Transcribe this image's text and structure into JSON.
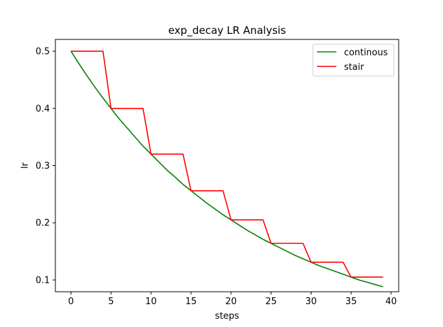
{
  "chart_data": {
    "type": "line",
    "title": "exp_decay LR Analysis",
    "xlabel": "steps",
    "ylabel": "lr",
    "xlim": [
      -1.95,
      40.95
    ],
    "ylim": [
      0.0794,
      0.5206
    ],
    "xticks": [
      0,
      5,
      10,
      15,
      20,
      25,
      30,
      35,
      40
    ],
    "xtick_labels": [
      "0",
      "5",
      "10",
      "15",
      "20",
      "25",
      "30",
      "35",
      "40"
    ],
    "yticks": [
      0.1,
      0.2,
      0.3,
      0.4,
      0.5
    ],
    "ytick_labels": [
      "0.1",
      "0.2",
      "0.3",
      "0.4",
      "0.5"
    ],
    "grid": false,
    "legend_position": "top-right",
    "series": [
      {
        "name": "continous",
        "color": "#008000",
        "x": [
          0,
          1,
          2,
          3,
          4,
          5,
          6,
          7,
          8,
          9,
          10,
          11,
          12,
          13,
          14,
          15,
          16,
          17,
          18,
          19,
          20,
          21,
          22,
          23,
          24,
          25,
          26,
          27,
          28,
          29,
          30,
          31,
          32,
          33,
          34,
          35,
          36,
          37,
          38,
          39
        ],
        "y": [
          0.5,
          0.478,
          0.457,
          0.437,
          0.418,
          0.4,
          0.382,
          0.366,
          0.35,
          0.334,
          0.32,
          0.306,
          0.292,
          0.28,
          0.267,
          0.256,
          0.245,
          0.234,
          0.224,
          0.214,
          0.205,
          0.196,
          0.187,
          0.179,
          0.171,
          0.164,
          0.157,
          0.15,
          0.143,
          0.137,
          0.131,
          0.125,
          0.12,
          0.115,
          0.11,
          0.105,
          0.1,
          0.096,
          0.092,
          0.088
        ]
      },
      {
        "name": "stair",
        "color": "#ff0000",
        "x": [
          0,
          1,
          2,
          3,
          4,
          5,
          6,
          7,
          8,
          9,
          10,
          11,
          12,
          13,
          14,
          15,
          16,
          17,
          18,
          19,
          20,
          21,
          22,
          23,
          24,
          25,
          26,
          27,
          28,
          29,
          30,
          31,
          32,
          33,
          34,
          35,
          36,
          37,
          38,
          39
        ],
        "y": [
          0.5,
          0.5,
          0.5,
          0.5,
          0.5,
          0.4,
          0.4,
          0.4,
          0.4,
          0.4,
          0.32,
          0.32,
          0.32,
          0.32,
          0.32,
          0.256,
          0.256,
          0.256,
          0.256,
          0.256,
          0.205,
          0.205,
          0.205,
          0.205,
          0.205,
          0.164,
          0.164,
          0.164,
          0.164,
          0.164,
          0.131,
          0.131,
          0.131,
          0.131,
          0.131,
          0.105,
          0.105,
          0.105,
          0.105,
          0.105
        ]
      }
    ]
  }
}
